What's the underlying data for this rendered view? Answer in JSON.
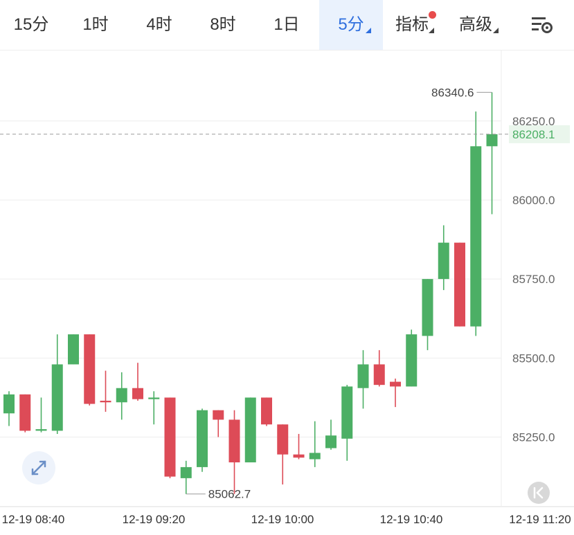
{
  "toolbar": {
    "tabs": [
      {
        "label": "15分",
        "active": false,
        "dropdown": false
      },
      {
        "label": "1时",
        "active": false,
        "dropdown": false
      },
      {
        "label": "4时",
        "active": false,
        "dropdown": false
      },
      {
        "label": "8时",
        "active": false,
        "dropdown": false
      },
      {
        "label": "1日",
        "active": false,
        "dropdown": false
      },
      {
        "label": "5分",
        "active": true,
        "dropdown": true
      },
      {
        "label": "指标",
        "active": false,
        "dropdown": true,
        "badge": true
      },
      {
        "label": "高级",
        "active": false,
        "dropdown": true
      }
    ],
    "settings_icon": "chart-settings-icon"
  },
  "chart_data": {
    "type": "candlestick",
    "interval": "5分",
    "y_ticks": [
      85250.0,
      85500.0,
      85750.0,
      86000.0,
      86250.0
    ],
    "y_tick_labels": [
      "85250.0",
      "85500.0",
      "85750.0",
      "86000.0",
      "86250.0"
    ],
    "y_range": [
      85030,
      86475
    ],
    "x_tick_labels": [
      "12-19 08:40",
      "12-19 09:20",
      "12-19 10:00",
      "12-19 10:40",
      "12-19 11:20"
    ],
    "last_price": 86208.1,
    "last_price_label": "86208.1",
    "high_label": "86340.6",
    "low_label": "85062.7",
    "colors": {
      "up": "#4caf65",
      "down": "#dd4b57",
      "grid": "#eeeeee"
    },
    "candles": [
      {
        "o": 85325,
        "h": 85395,
        "l": 85285,
        "c": 85385
      },
      {
        "o": 85385,
        "h": 85385,
        "l": 85265,
        "c": 85270
      },
      {
        "o": 85270,
        "h": 85375,
        "l": 85265,
        "c": 85275
      },
      {
        "o": 85270,
        "h": 85575,
        "l": 85260,
        "c": 85480
      },
      {
        "o": 85480,
        "h": 85575,
        "l": 85480,
        "c": 85575
      },
      {
        "o": 85575,
        "h": 85575,
        "l": 85350,
        "c": 85355
      },
      {
        "o": 85365,
        "h": 85460,
        "l": 85330,
        "c": 85360
      },
      {
        "o": 85360,
        "h": 85455,
        "l": 85305,
        "c": 85405
      },
      {
        "o": 85405,
        "h": 85485,
        "l": 85365,
        "c": 85370
      },
      {
        "o": 85370,
        "h": 85395,
        "l": 85290,
        "c": 85375
      },
      {
        "o": 85375,
        "h": 85375,
        "l": 85120,
        "c": 85125
      },
      {
        "o": 85120,
        "h": 85175,
        "l": 85070,
        "c": 85155
      },
      {
        "o": 85155,
        "h": 85340,
        "l": 85140,
        "c": 85335
      },
      {
        "o": 85335,
        "h": 85335,
        "l": 85250,
        "c": 85305
      },
      {
        "o": 85305,
        "h": 85335,
        "l": 85070,
        "c": 85170
      },
      {
        "o": 85170,
        "h": 85375,
        "l": 85170,
        "c": 85375
      },
      {
        "o": 85375,
        "h": 85375,
        "l": 85285,
        "c": 85290
      },
      {
        "o": 85290,
        "h": 85290,
        "l": 85100,
        "c": 85195
      },
      {
        "o": 85195,
        "h": 85260,
        "l": 85180,
        "c": 85185
      },
      {
        "o": 85180,
        "h": 85300,
        "l": 85155,
        "c": 85200
      },
      {
        "o": 85215,
        "h": 85305,
        "l": 85210,
        "c": 85255
      },
      {
        "o": 85245,
        "h": 85415,
        "l": 85175,
        "c": 85410
      },
      {
        "o": 85405,
        "h": 85525,
        "l": 85340,
        "c": 85480
      },
      {
        "o": 85480,
        "h": 85525,
        "l": 85410,
        "c": 85415
      },
      {
        "o": 85425,
        "h": 85435,
        "l": 85345,
        "c": 85410
      },
      {
        "o": 85410,
        "h": 85590,
        "l": 85410,
        "c": 85575
      },
      {
        "o": 85570,
        "h": 85750,
        "l": 85525,
        "c": 85750
      },
      {
        "o": 85750,
        "h": 85920,
        "l": 85715,
        "c": 85865
      },
      {
        "o": 85865,
        "h": 85865,
        "l": 85600,
        "c": 85600
      },
      {
        "o": 85600,
        "h": 86280,
        "l": 85570,
        "c": 86170
      },
      {
        "o": 86170,
        "h": 86340.6,
        "l": 85955,
        "c": 86208.1
      }
    ]
  }
}
